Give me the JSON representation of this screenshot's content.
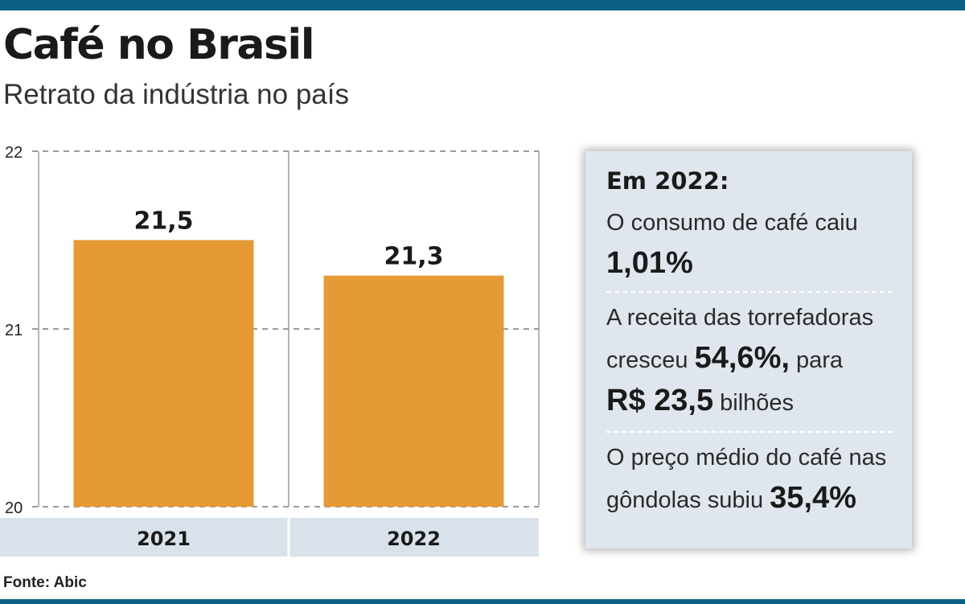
{
  "header": {
    "title": "Café no Brasil",
    "subtitle": "Retrato da indústria no país"
  },
  "chart_data": {
    "type": "bar",
    "categories": [
      "2021",
      "2022"
    ],
    "values": [
      21.5,
      21.3
    ],
    "value_labels": [
      "21,5",
      "21,3"
    ],
    "ylim": [
      20,
      22
    ],
    "yticks": [
      "20",
      "21",
      "22"
    ],
    "grid": true,
    "bar_color": "#e59a35"
  },
  "panel": {
    "heading": "Em 2022:",
    "s1_text": "O consumo de café caiu",
    "s1_value": "1,01%",
    "s2_line1": "A receita das torrefadoras",
    "s2_pre": "cresceu",
    "s2_value": "54,6%,",
    "s2_post": "para",
    "s2_amount": "R$ 23,5",
    "s2_unit": "bilhões",
    "s3_line1": "O preço médio do café nas",
    "s3_pre": "gôndolas subiu",
    "s3_value": "35,4%"
  },
  "source": "Fonte: Abic",
  "colors": {
    "accent_bar": "#0b5f86",
    "panel_bg": "#dfe6ee",
    "category_band": "#d9e2ea"
  }
}
